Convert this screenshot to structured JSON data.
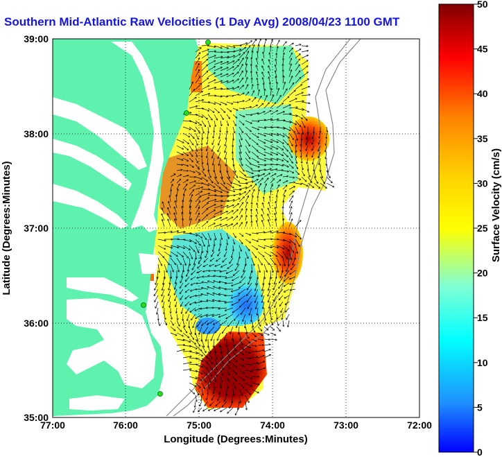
{
  "title": "Southern Mid-Atlantic Raw Velocities (1 Day Avg) 2008/04/23 1100 GMT",
  "map": {
    "xlabel": "Longitude (Degrees:Minutes)",
    "ylabel": "Latitude (Degrees:Minutes)",
    "x_ticks": [
      "77:00",
      "76:00",
      "75:00",
      "74:00",
      "73:00",
      "72:00"
    ],
    "y_ticks": [
      "39:00",
      "38:00",
      "37:00",
      "36:00",
      "35:00"
    ],
    "land_color": "#5ef2ae",
    "grid": "dotted"
  },
  "colorbar": {
    "label": "Surface Velocity (cm/s)",
    "ticks": [
      "0",
      "5",
      "10",
      "15",
      "20",
      "25",
      "30",
      "35",
      "40",
      "45",
      "50"
    ],
    "min": 0,
    "max": 50,
    "colormap": "jet"
  }
}
